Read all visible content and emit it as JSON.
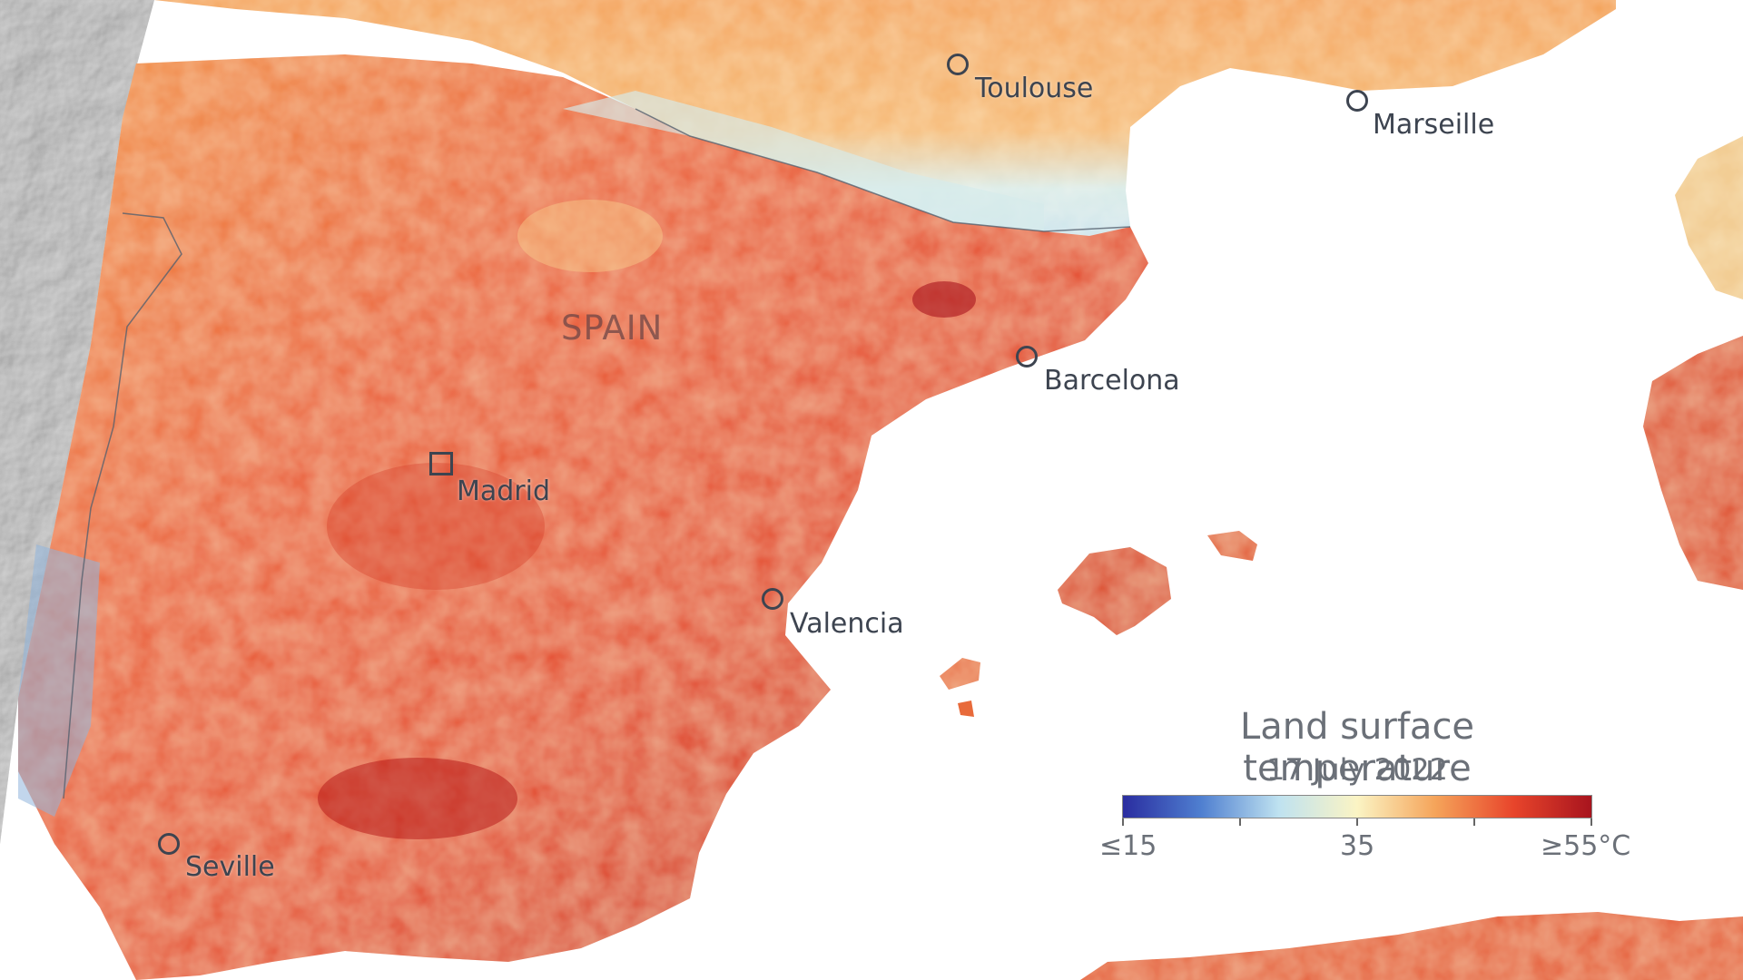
{
  "map": {
    "country_label": "SPAIN",
    "cities": [
      {
        "name": "Toulouse",
        "marker": "circle"
      },
      {
        "name": "Marseille",
        "marker": "circle"
      },
      {
        "name": "Barcelona",
        "marker": "circle"
      },
      {
        "name": "Madrid",
        "marker": "square"
      },
      {
        "name": "Valencia",
        "marker": "circle"
      },
      {
        "name": "Seville",
        "marker": "circle"
      }
    ]
  },
  "legend": {
    "title": "Land surface temperature",
    "date": "17 July 2022",
    "min_label": "≤15",
    "mid_label": "35",
    "max_label": "≥55°C",
    "colors": [
      "#2a2da0",
      "#4f7fd0",
      "#bfe2f0",
      "#fbf4c4",
      "#f5a45a",
      "#e8452b",
      "#a8141e"
    ]
  }
}
